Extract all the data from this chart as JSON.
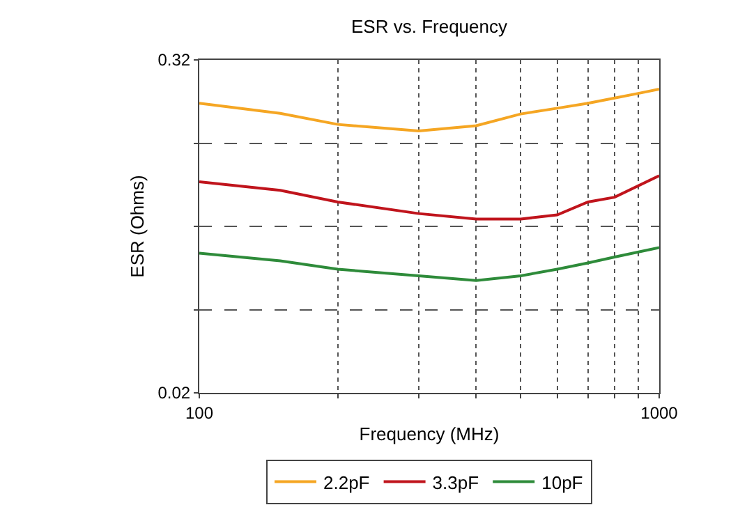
{
  "chart_data": {
    "type": "line",
    "title": "ESR vs. Frequency",
    "xlabel": "Frequency (MHz)",
    "ylabel": "ESR (Ohms)",
    "log": "xy",
    "x": [
      100,
      150,
      200,
      300,
      400,
      500,
      600,
      700,
      800,
      900,
      1000
    ],
    "series": [
      {
        "name": "2.2pF",
        "color": "#f5a623",
        "values": [
          0.223,
          0.205,
          0.187,
          0.177,
          0.185,
          0.204,
          0.214,
          0.223,
          0.233,
          0.242,
          0.251
        ]
      },
      {
        "name": "3.3pF",
        "color": "#c0141c",
        "x": [
          100,
          150,
          200,
          300,
          400,
          500,
          600,
          700,
          800,
          1000
        ],
        "values": [
          0.116,
          0.108,
          0.098,
          0.089,
          0.085,
          0.085,
          0.088,
          0.098,
          0.102,
          0.122
        ]
      },
      {
        "name": "10pF",
        "color": "#2e8b3a",
        "x": [
          100,
          150,
          200,
          300,
          400,
          500,
          600,
          700,
          800,
          1000
        ],
        "values": [
          0.064,
          0.06,
          0.056,
          0.053,
          0.051,
          0.053,
          0.056,
          0.059,
          0.062,
          0.067
        ]
      }
    ],
    "xlim": [
      100,
      1000
    ],
    "ylim": [
      0.02,
      0.32
    ],
    "xticks": [
      100,
      {
        "value": 200,
        "label": null
      },
      {
        "value": 300,
        "label": null
      },
      {
        "value": 400,
        "label": null
      },
      {
        "value": 500,
        "label": null
      },
      {
        "value": 600,
        "label": null
      },
      {
        "value": 700,
        "label": null
      },
      {
        "value": 800,
        "label": null
      },
      {
        "value": 900,
        "label": null
      },
      1000
    ],
    "yticks": [
      0.02,
      {
        "value": 0.04,
        "label": null
      },
      {
        "value": 0.08,
        "label": null
      },
      {
        "value": 0.16,
        "label": null
      },
      0.32
    ],
    "grid": true,
    "legend": "bottom",
    "marker": "none",
    "line_style": "solid"
  }
}
